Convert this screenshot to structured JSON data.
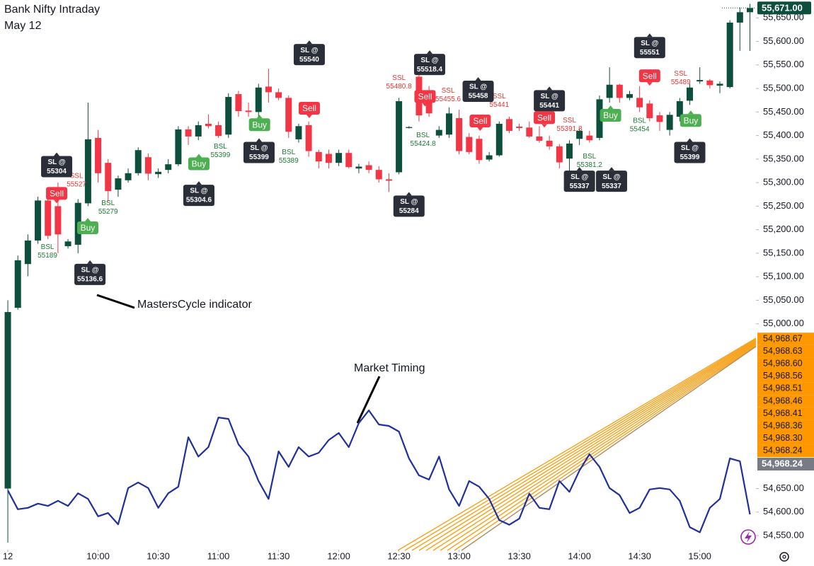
{
  "chart_data": {
    "type": "candlestick",
    "title": "Bank Nifty Intraday",
    "subtitle": "May 12",
    "up_color": "#0d4f3c",
    "down_color": "#f23645",
    "xlim": [
      -0.78,
      74.6
    ],
    "xticks": [
      {
        "value": 0,
        "label": "12"
      },
      {
        "value": 9,
        "label": "10:00"
      },
      {
        "value": 15,
        "label": "10:30"
      },
      {
        "value": 21,
        "label": "11:00"
      },
      {
        "value": 27,
        "label": "11:30"
      },
      {
        "value": 33,
        "label": "12:00"
      },
      {
        "value": 39,
        "label": "12:30"
      },
      {
        "value": 45,
        "label": "13:00"
      },
      {
        "value": 51,
        "label": "13:30"
      },
      {
        "value": 57,
        "label": "14:00"
      },
      {
        "value": 63,
        "label": "14:30"
      },
      {
        "value": 69,
        "label": "15:00"
      }
    ],
    "ylim": [
      54523,
      55688
    ],
    "yticks": [
      {
        "value": 54550,
        "label": "54,550.00"
      },
      {
        "value": 54600,
        "label": "54,600.00"
      },
      {
        "value": 54650,
        "label": "54,650.00"
      },
      {
        "value": 55000,
        "label": "55,000.00"
      },
      {
        "value": 55050,
        "label": "55,050.00"
      },
      {
        "value": 55100,
        "label": "55,100.00"
      },
      {
        "value": 55150,
        "label": "55,150.00"
      },
      {
        "value": 55200,
        "label": "55,200.00"
      },
      {
        "value": 55250,
        "label": "55,250.00"
      },
      {
        "value": 55300,
        "label": "55,300.00"
      },
      {
        "value": 55350,
        "label": "55,350.00"
      },
      {
        "value": 55400,
        "label": "55,400.00"
      },
      {
        "value": 55450,
        "label": "55,450.00"
      },
      {
        "value": 55500,
        "label": "55,500.00"
      },
      {
        "value": 55550,
        "label": "55,550.00"
      },
      {
        "value": 55600,
        "label": "55,600.00"
      },
      {
        "value": 55650,
        "label": "55,650.00"
      }
    ],
    "last_price": {
      "value": 55671,
      "label": "55,671.00"
    },
    "candles": [
      {
        "open": 54650,
        "high": 55050,
        "low": 54535,
        "close": 55025
      },
      {
        "open": 55034,
        "high": 55145,
        "low": 55030,
        "close": 55135
      },
      {
        "open": 55127,
        "high": 55190,
        "low": 55101,
        "close": 55177
      },
      {
        "open": 55177,
        "high": 55270,
        "low": 55170,
        "close": 55262
      },
      {
        "open": 55262,
        "high": 55275,
        "low": 55180,
        "close": 55187
      },
      {
        "open": 55250,
        "high": 55300,
        "low": 55150,
        "close": 55190
      },
      {
        "open": 55165,
        "high": 55180,
        "low": 55160,
        "close": 55175
      },
      {
        "open": 55168,
        "high": 55265,
        "low": 55150,
        "close": 55257
      },
      {
        "open": 55256,
        "high": 55470,
        "low": 55250,
        "close": 55392
      },
      {
        "open": 55395,
        "high": 55412,
        "low": 55300,
        "close": 55320
      },
      {
        "open": 55342,
        "high": 55350,
        "low": 55260,
        "close": 55282
      },
      {
        "open": 55285,
        "high": 55315,
        "low": 55270,
        "close": 55309
      },
      {
        "open": 55305,
        "high": 55330,
        "low": 55300,
        "close": 55320
      },
      {
        "open": 55320,
        "high": 55375,
        "low": 55315,
        "close": 55369
      },
      {
        "open": 55354,
        "high": 55362,
        "low": 55305,
        "close": 55319
      },
      {
        "open": 55318,
        "high": 55330,
        "low": 55310,
        "close": 55323
      },
      {
        "open": 55327,
        "high": 55350,
        "low": 55320,
        "close": 55339
      },
      {
        "open": 55339,
        "high": 55420,
        "low": 55335,
        "close": 55413
      },
      {
        "open": 55413,
        "high": 55420,
        "low": 55380,
        "close": 55398
      },
      {
        "open": 55398,
        "high": 55430,
        "low": 55390,
        "close": 55422
      },
      {
        "open": 55425,
        "high": 55445,
        "low": 55415,
        "close": 55420
      },
      {
        "open": 55422,
        "high": 55430,
        "low": 55395,
        "close": 55399
      },
      {
        "open": 55402,
        "high": 55490,
        "low": 55395,
        "close": 55482
      },
      {
        "open": 55488,
        "high": 55495,
        "low": 55440,
        "close": 55452
      },
      {
        "open": 55453,
        "high": 55470,
        "low": 55440,
        "close": 55450
      },
      {
        "open": 55450,
        "high": 55510,
        "low": 55420,
        "close": 55502
      },
      {
        "open": 55504,
        "high": 55542,
        "low": 55470,
        "close": 55492
      },
      {
        "open": 55492,
        "high": 55500,
        "low": 55475,
        "close": 55480
      },
      {
        "open": 55480,
        "high": 55485,
        "low": 55395,
        "close": 55408
      },
      {
        "open": 55392,
        "high": 55425,
        "low": 55385,
        "close": 55420
      },
      {
        "open": 55422,
        "high": 55430,
        "low": 55355,
        "close": 55367
      },
      {
        "open": 55365,
        "high": 55370,
        "low": 55330,
        "close": 55345
      },
      {
        "open": 55361,
        "high": 55370,
        "low": 55330,
        "close": 55342
      },
      {
        "open": 55342,
        "high": 55370,
        "low": 55335,
        "close": 55363
      },
      {
        "open": 55363,
        "high": 55370,
        "low": 55330,
        "close": 55333
      },
      {
        "open": 55330,
        "high": 55340,
        "low": 55320,
        "close": 55334
      },
      {
        "open": 55337,
        "high": 55345,
        "low": 55320,
        "close": 55327
      },
      {
        "open": 55327,
        "high": 55335,
        "low": 55300,
        "close": 55307
      },
      {
        "open": 55307,
        "high": 55320,
        "low": 55280,
        "close": 55304
      },
      {
        "open": 55322,
        "high": 55480,
        "low": 55318,
        "close": 55473
      },
      {
        "open": 55416,
        "high": 55420,
        "low": 55415,
        "close": 55418
      },
      {
        "open": 55525,
        "high": 55540,
        "low": 55430,
        "close": 55443
      },
      {
        "open": 55489,
        "high": 55505,
        "low": 55440,
        "close": 55447
      },
      {
        "open": 55400,
        "high": 55420,
        "low": 55395,
        "close": 55412
      },
      {
        "open": 55402,
        "high": 55460,
        "low": 55395,
        "close": 55447
      },
      {
        "open": 55437,
        "high": 55455,
        "low": 55360,
        "close": 55367
      },
      {
        "open": 55397,
        "high": 55405,
        "low": 55360,
        "close": 55365
      },
      {
        "open": 55393,
        "high": 55400,
        "low": 55340,
        "close": 55348
      },
      {
        "open": 55349,
        "high": 55365,
        "low": 55345,
        "close": 55358
      },
      {
        "open": 55358,
        "high": 55430,
        "low": 55355,
        "close": 55425
      },
      {
        "open": 55435,
        "high": 55440,
        "low": 55405,
        "close": 55410
      },
      {
        "open": 55419,
        "high": 55425,
        "low": 55410,
        "close": 55416
      },
      {
        "open": 55417,
        "high": 55430,
        "low": 55395,
        "close": 55398
      },
      {
        "open": 55398,
        "high": 55420,
        "low": 55385,
        "close": 55389
      },
      {
        "open": 55389,
        "high": 55400,
        "low": 55370,
        "close": 55377
      },
      {
        "open": 55377,
        "high": 55382,
        "low": 55330,
        "close": 55343
      },
      {
        "open": 55351,
        "high": 55390,
        "low": 55310,
        "close": 55383
      },
      {
        "open": 55393,
        "high": 55415,
        "low": 55380,
        "close": 55410
      },
      {
        "open": 55400,
        "high": 55410,
        "low": 55385,
        "close": 55390
      },
      {
        "open": 55395,
        "high": 55485,
        "low": 55390,
        "close": 55477
      },
      {
        "open": 55480,
        "high": 55545,
        "low": 55470,
        "close": 55508
      },
      {
        "open": 55508,
        "high": 55510,
        "low": 55470,
        "close": 55480
      },
      {
        "open": 55480,
        "high": 55495,
        "low": 55475,
        "close": 55488
      },
      {
        "open": 55480,
        "high": 55505,
        "low": 55450,
        "close": 55460
      },
      {
        "open": 55468,
        "high": 55475,
        "low": 55430,
        "close": 55437
      },
      {
        "open": 55443,
        "high": 55450,
        "low": 55410,
        "close": 55429
      },
      {
        "open": 55412,
        "high": 55450,
        "low": 55400,
        "close": 55444
      },
      {
        "open": 55440,
        "high": 55480,
        "low": 55430,
        "close": 55473
      },
      {
        "open": 55474,
        "high": 55510,
        "low": 55465,
        "close": 55502
      },
      {
        "open": 55515,
        "high": 55545,
        "low": 55510,
        "close": 55518
      },
      {
        "open": 55517,
        "high": 55520,
        "low": 55500,
        "close": 55507
      },
      {
        "open": 55506,
        "high": 55515,
        "low": 55490,
        "close": 55510
      },
      {
        "open": 55503,
        "high": 55645,
        "low": 55500,
        "close": 55640
      },
      {
        "open": 55640,
        "high": 55672,
        "low": 55580,
        "close": 55662
      },
      {
        "open": 55662,
        "high": 55680,
        "low": 55580,
        "close": 55671
      }
    ],
    "series": [
      {
        "name": "Market Timing",
        "color": "#1f2f9c",
        "values": [
          54646,
          54606,
          54609,
          54618,
          54613,
          54624,
          54613,
          54640,
          54628,
          54591,
          54598,
          54574,
          54651,
          54663,
          54651,
          54609,
          54640,
          54654,
          54759,
          54718,
          54738,
          54801,
          54798,
          54744,
          54718,
          54666,
          54628,
          54729,
          54696,
          54738,
          54718,
          54726,
          54753,
          54768,
          54738,
          54789,
          54816,
          54786,
          54783,
          54771,
          54714,
          54678,
          54669,
          54718,
          54648,
          54613,
          54666,
          54654,
          54628,
          54583,
          54573,
          54586,
          54639,
          54609,
          54606,
          54666,
          54643,
          54688,
          54723,
          54696,
          54651,
          54636,
          54598,
          54609,
          54648,
          54651,
          54648,
          54624,
          54568,
          54557,
          54609,
          54628,
          54714,
          54708,
          54595
        ]
      }
    ],
    "annotations": [
      {
        "text": "MastersCycle indicator"
      }
    ],
    "fan_levels": [
      {
        "value": 54968.67,
        "label": "54,968.67"
      },
      {
        "value": 54968.63,
        "label": "54,968.63"
      },
      {
        "value": 54968.6,
        "label": "54,968.60"
      },
      {
        "value": 54968.56,
        "label": "54,968.56"
      },
      {
        "value": 54968.51,
        "label": "54,968.51"
      },
      {
        "value": 54968.46,
        "label": "54,968.46"
      },
      {
        "value": 54968.41,
        "label": "54,968.41"
      },
      {
        "value": 54968.36,
        "label": "54,968.36"
      },
      {
        "value": 54968.3,
        "label": "54,968.30"
      },
      {
        "value": 54968.24,
        "label": "54,968.24"
      }
    ],
    "fan_last": {
      "value": 54968.24,
      "label": "54,968.24"
    },
    "stop_losses": [
      {
        "label": "SL @",
        "level": 55304,
        "x": 4.87,
        "y": 55334
      },
      {
        "label": "SL @",
        "level": 55136.6,
        "x": 8.19,
        "y": 55105
      },
      {
        "label": "SL @",
        "level": 55304.6,
        "x": 19.05,
        "y": 55273
      },
      {
        "label": "SL @",
        "level": 55399,
        "x": 25.05,
        "y": 55364
      },
      {
        "label": "SL @",
        "level": 55540,
        "x": 30.06,
        "y": 55572
      },
      {
        "label": "SL @",
        "level": 55284,
        "x": 40.0,
        "y": 55250
      },
      {
        "label": "SL @",
        "level": 55518.4,
        "x": 42.06,
        "y": 55551
      },
      {
        "label": "SL @",
        "level": 55458,
        "x": 46.9,
        "y": 55494
      },
      {
        "label": "SL @",
        "level": 55441,
        "x": 54.0,
        "y": 55474
      },
      {
        "label": "SL @",
        "level": 55337,
        "x": 57.0,
        "y": 55303
      },
      {
        "label": "SL @",
        "level": 55337,
        "x": 60.2,
        "y": 55303
      },
      {
        "label": "SL @",
        "level": 55551,
        "x": 64.0,
        "y": 55587
      },
      {
        "label": "SL @",
        "level": 55399,
        "x": 68.0,
        "y": 55364
      }
    ],
    "signals": [
      {
        "label": "Buy",
        "x": 7.97,
        "y": 55204
      },
      {
        "label": "Buy",
        "x": 19.05,
        "y": 55340
      },
      {
        "label": "Buy",
        "x": 25.1,
        "y": 55423
      },
      {
        "label": "Buy",
        "x": 60.1,
        "y": 55443
      },
      {
        "label": "Buy",
        "x": 68.1,
        "y": 55432
      },
      {
        "label": "Sell",
        "x": 4.87,
        "y": 55277
      },
      {
        "label": "Sell",
        "x": 30.06,
        "y": 55458
      },
      {
        "label": "Sell",
        "x": 41.6,
        "y": 55483
      },
      {
        "label": "Sell",
        "x": 47.1,
        "y": 55431
      },
      {
        "label": "Sell",
        "x": 53.5,
        "y": 55438
      },
      {
        "label": "Sell",
        "x": 64.0,
        "y": 55527
      }
    ],
    "liquidity": [
      {
        "label": "BSL",
        "level": 55189,
        "x": 3.95,
        "y": 55154
      },
      {
        "label": "BSL",
        "level": 55279,
        "x": 10.0,
        "y": 55247
      },
      {
        "label": "BSL",
        "level": 55399,
        "x": 21.2,
        "y": 55367
      },
      {
        "label": "BSL",
        "level": 55389,
        "x": 28.0,
        "y": 55355
      },
      {
        "label": "BSL",
        "level": 55424.8,
        "x": 41.4,
        "y": 55391
      },
      {
        "label": "BSL",
        "level": 55381.2,
        "x": 58.0,
        "y": 55346
      },
      {
        "label": "BSL",
        "level": 55454,
        "x": 63.0,
        "y": 55422
      },
      {
        "label": "SSL",
        "level": 55527,
        "x": 6.85,
        "y": 55305
      },
      {
        "label": "SSL",
        "level": 55480.8,
        "x": 39.0,
        "y": 55513
      },
      {
        "label": "SSL",
        "level": 55455.6,
        "x": 43.9,
        "y": 55486
      },
      {
        "label": "SSL",
        "level": 55441,
        "x": 49.0,
        "y": 55474
      },
      {
        "label": "SSL",
        "level": 55391.8,
        "x": 56.0,
        "y": 55423
      },
      {
        "label": "SSL",
        "level": 55489,
        "x": 67.1,
        "y": 55522
      }
    ]
  }
}
